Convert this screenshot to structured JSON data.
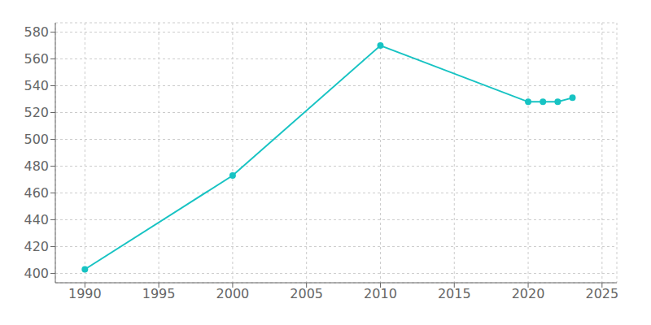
{
  "chart_data": {
    "type": "line",
    "x": [
      1990,
      2000,
      2010,
      2020,
      2021,
      2022,
      2023
    ],
    "values": [
      403,
      473,
      570,
      528,
      528,
      528,
      531
    ],
    "color": "#17c3c3",
    "marker": "circle",
    "xlim": [
      1988,
      2026
    ],
    "ylim": [
      393,
      587
    ],
    "xticks": [
      1990,
      1995,
      2000,
      2005,
      2010,
      2015,
      2020,
      2025
    ],
    "yticks": [
      400,
      420,
      440,
      460,
      480,
      500,
      520,
      540,
      560,
      580
    ],
    "grid": true
  }
}
